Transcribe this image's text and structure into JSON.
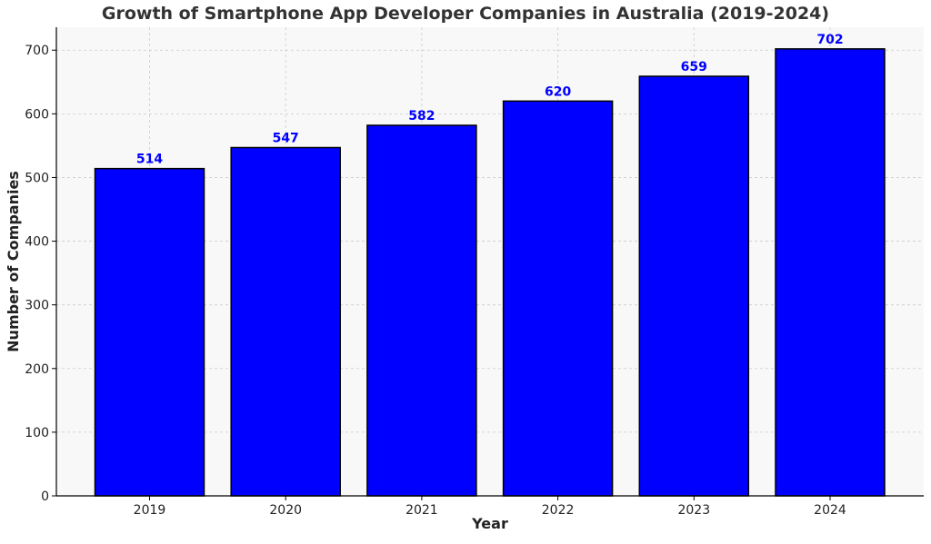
{
  "chart_data": {
    "type": "bar",
    "title": "Growth of Smartphone App Developer Companies in Australia (2019-2024)",
    "xlabel": "Year",
    "ylabel": "Number of Companies",
    "categories": [
      "2019",
      "2020",
      "2021",
      "2022",
      "2023",
      "2024"
    ],
    "values": [
      514,
      547,
      582,
      620,
      659,
      702
    ],
    "data_labels": [
      "514",
      "547",
      "582",
      "620",
      "659",
      "702"
    ],
    "ylim": [
      0,
      736
    ],
    "yticks": [
      0,
      100,
      200,
      300,
      400,
      500,
      600,
      700
    ],
    "grid": true,
    "colors": {
      "bar_fill": "#0000ff",
      "bar_edge": "#000000",
      "data_label": "#0000ff",
      "plot_bg": "#f8f8f8",
      "grid": "#cccccc"
    }
  }
}
